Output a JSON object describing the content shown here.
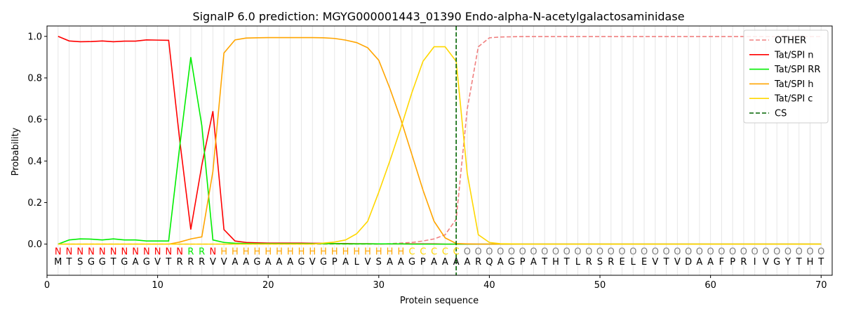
{
  "chart_data": {
    "type": "line",
    "title": "SignalP 6.0 prediction: MGYG000001443_01390 Endo-alpha-N-acetylgalactosaminidase",
    "xlabel": "Protein sequence",
    "ylabel": "Probability",
    "xlim": [
      0,
      71
    ],
    "ylim": [
      -0.15,
      1.05
    ],
    "xticks": [
      0,
      10,
      20,
      30,
      40,
      50,
      60,
      70
    ],
    "yticks": [
      0.0,
      0.2,
      0.4,
      0.6,
      0.8,
      1.0
    ],
    "ytick_labels": [
      "0.0",
      "0.2",
      "0.4",
      "0.6",
      "0.8",
      "1.0"
    ],
    "grid": "vertical lines at each residue",
    "legend_position": "top-right",
    "sequence": [
      "M",
      "T",
      "S",
      "G",
      "G",
      "T",
      "G",
      "A",
      "G",
      "V",
      "T",
      "R",
      "R",
      "R",
      "V",
      "V",
      "A",
      "A",
      "G",
      "A",
      "A",
      "A",
      "G",
      "V",
      "G",
      "P",
      "A",
      "L",
      "V",
      "S",
      "A",
      "A",
      "G",
      "P",
      "A",
      "A",
      "A",
      "A",
      "R",
      "Q",
      "A",
      "G",
      "P",
      "A",
      "T",
      "H",
      "T",
      "L",
      "R",
      "S",
      "R",
      "E",
      "L",
      "E",
      "V",
      "T",
      "V",
      "D",
      "A",
      "A",
      "F",
      "P",
      "R",
      "I",
      "V",
      "G",
      "Y",
      "T",
      "H",
      "T"
    ],
    "labels": [
      "N",
      "N",
      "N",
      "N",
      "N",
      "N",
      "N",
      "N",
      "N",
      "N",
      "N",
      "N",
      "R",
      "R",
      "N",
      "H",
      "H",
      "H",
      "H",
      "H",
      "H",
      "H",
      "H",
      "H",
      "H",
      "H",
      "H",
      "H",
      "H",
      "H",
      "H",
      "H",
      "C",
      "C",
      "C",
      "C",
      "C",
      "O",
      "O",
      "O",
      "O",
      "O",
      "O",
      "O",
      "O",
      "O",
      "O",
      "O",
      "O",
      "O",
      "O",
      "O",
      "O",
      "O",
      "O",
      "O",
      "O",
      "O",
      "O",
      "O",
      "O",
      "O",
      "O",
      "O",
      "O",
      "O",
      "O",
      "O",
      "O",
      "O"
    ],
    "label_colors": {
      "N": "#ff0000",
      "R": "#00ee00",
      "H": "#ffa500",
      "C": "#ffd700",
      "O": "#808080"
    },
    "cleavage_site": 37,
    "series": [
      {
        "name": "OTHER",
        "color": "#f08080",
        "dash": true,
        "values": [
          0,
          0,
          0,
          0,
          0,
          0,
          0,
          0,
          0,
          0,
          0,
          0,
          0,
          0,
          0,
          0,
          0,
          0,
          0,
          0,
          0,
          0,
          0,
          0,
          0,
          0,
          0,
          0,
          0,
          0,
          0.002,
          0.005,
          0.008,
          0.015,
          0.025,
          0.045,
          0.12,
          0.65,
          0.95,
          0.993,
          0.997,
          0.998,
          0.999,
          0.999,
          0.999,
          0.999,
          0.999,
          0.999,
          0.999,
          0.999,
          0.999,
          0.999,
          0.999,
          0.999,
          0.999,
          0.999,
          0.999,
          0.999,
          0.999,
          0.999,
          0.999,
          0.999,
          0.999,
          0.999,
          0.999,
          0.999,
          0.999,
          0.999,
          0.999,
          0.999
        ]
      },
      {
        "name": "Tat/SPI n",
        "color": "#ff0000",
        "dash": false,
        "values": [
          1.0,
          0.978,
          0.974,
          0.975,
          0.978,
          0.974,
          0.977,
          0.977,
          0.983,
          0.982,
          0.981,
          0.5,
          0.07,
          0.38,
          0.64,
          0.07,
          0.015,
          0.008,
          0.006,
          0.005,
          0.005,
          0.005,
          0.005,
          0.004,
          0.004,
          0.003,
          0.003,
          0.002,
          0.002,
          0.001,
          0.001,
          0.001,
          0.001,
          0.001,
          0.001,
          0,
          0,
          0,
          0,
          0,
          0,
          0,
          0,
          0,
          0,
          0,
          0,
          0,
          0,
          0,
          0,
          0,
          0,
          0,
          0,
          0,
          0,
          0,
          0,
          0,
          0,
          0,
          0,
          0,
          0,
          0,
          0,
          0,
          0,
          0
        ]
      },
      {
        "name": "Tat/SPI RR",
        "color": "#00ee00",
        "dash": false,
        "values": [
          0,
          0.02,
          0.025,
          0.024,
          0.02,
          0.025,
          0.02,
          0.02,
          0.015,
          0.015,
          0.015,
          0.47,
          0.9,
          0.57,
          0.02,
          0.008,
          0.004,
          0.003,
          0.002,
          0.002,
          0.002,
          0.002,
          0.002,
          0.002,
          0.002,
          0.002,
          0.001,
          0.001,
          0.001,
          0.001,
          0.001,
          0.001,
          0,
          0,
          0,
          0,
          0,
          0,
          0,
          0,
          0,
          0,
          0,
          0,
          0,
          0,
          0,
          0,
          0,
          0,
          0,
          0,
          0,
          0,
          0,
          0,
          0,
          0,
          0,
          0,
          0,
          0,
          0,
          0,
          0,
          0,
          0,
          0,
          0,
          0
        ]
      },
      {
        "name": "Tat/SPI h",
        "color": "#ffa500",
        "dash": false,
        "values": [
          0,
          0,
          0,
          0,
          0,
          0,
          0,
          0,
          0,
          0,
          0,
          0.01,
          0.025,
          0.035,
          0.35,
          0.92,
          0.983,
          0.992,
          0.993,
          0.994,
          0.994,
          0.994,
          0.994,
          0.994,
          0.993,
          0.99,
          0.982,
          0.97,
          0.945,
          0.885,
          0.75,
          0.6,
          0.43,
          0.26,
          0.11,
          0.03,
          0.003,
          0.001,
          0,
          0,
          0,
          0,
          0,
          0,
          0,
          0,
          0,
          0,
          0,
          0,
          0,
          0,
          0,
          0,
          0,
          0,
          0,
          0,
          0,
          0,
          0,
          0,
          0,
          0,
          0,
          0,
          0,
          0,
          0,
          0
        ]
      },
      {
        "name": "Tat/SPI c",
        "color": "#ffd700",
        "dash": false,
        "values": [
          0,
          0,
          0,
          0,
          0,
          0,
          0,
          0,
          0,
          0,
          0,
          0,
          0,
          0,
          0,
          0,
          0,
          0,
          0,
          0,
          0,
          0,
          0,
          0,
          0.005,
          0.01,
          0.02,
          0.05,
          0.11,
          0.25,
          0.4,
          0.56,
          0.73,
          0.88,
          0.95,
          0.95,
          0.88,
          0.34,
          0.045,
          0.008,
          0.002,
          0.001,
          0,
          0,
          0,
          0,
          0,
          0,
          0,
          0,
          0,
          0,
          0,
          0,
          0,
          0,
          0,
          0,
          0,
          0,
          0,
          0,
          0,
          0,
          0,
          0,
          0,
          0,
          0,
          0
        ]
      },
      {
        "name": "CS",
        "color": "#006400",
        "dash": true
      }
    ]
  }
}
